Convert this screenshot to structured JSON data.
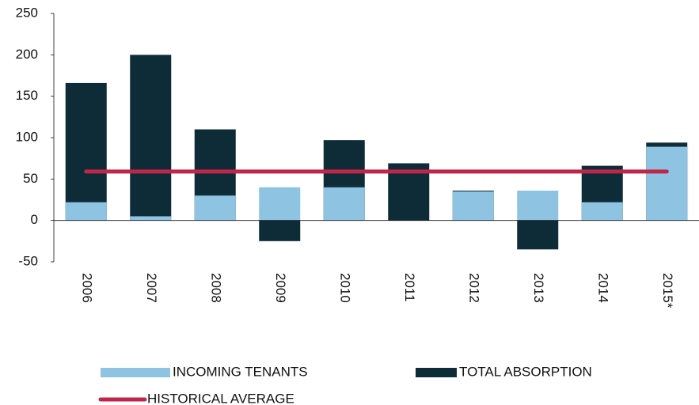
{
  "chart_data": {
    "type": "bar",
    "categories": [
      "2006",
      "2007",
      "2008",
      "2009",
      "2010",
      "2011",
      "2012",
      "2013",
      "2014",
      "2015*"
    ],
    "series": [
      {
        "name": "TOTAL ABSORPTION",
        "type": "bar",
        "color": "#0e2c38",
        "values": [
          166,
          200,
          110,
          -25,
          97,
          69,
          36,
          -35,
          66,
          94
        ]
      },
      {
        "name": "INCOMING TENANTS",
        "type": "bar",
        "color": "#8ec3e2",
        "values": [
          22,
          5,
          30,
          40,
          40,
          0,
          35,
          36,
          22,
          89
        ]
      },
      {
        "name": "HISTORICAL AVERAGE",
        "type": "line",
        "color": "#c0254a",
        "values": [
          59,
          59,
          59,
          59,
          59,
          59,
          59,
          59,
          59,
          59
        ]
      }
    ],
    "legend_order": [
      1,
      0,
      2
    ],
    "ylim": [
      -50,
      250
    ],
    "yticks": [
      -50,
      0,
      50,
      100,
      150,
      200,
      250
    ],
    "grid": false
  }
}
